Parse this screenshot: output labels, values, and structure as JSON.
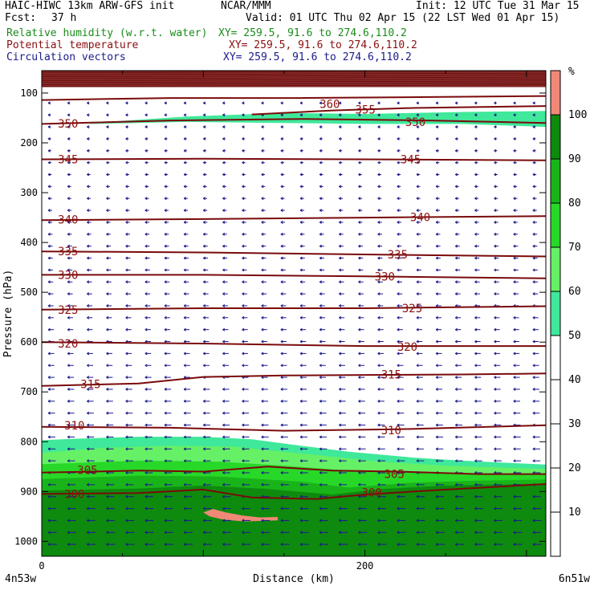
{
  "header": {
    "model": "HAIC-HIWC 13km ARW-GFS init",
    "org": "NCAR/MMM",
    "init": "Init: 12 UTC Tue 31 Mar 15",
    "fcst_label": "Fcst:",
    "fcst_value": "37 h",
    "valid": "Valid: 01 UTC Thu 02 Apr 15 (22 LST Wed 01 Apr 15)",
    "fields": [
      {
        "name": "Relative humidity (w.r.t. water)",
        "xy": "XY= 259.5, 91.6 to 274.6,110.2",
        "color": "#1a8c1a"
      },
      {
        "name": "Potential temperature",
        "xy": "XY= 259.5, 91.6 to 274.6,110.2",
        "color": "#8b1010"
      },
      {
        "name": "Circulation vectors",
        "xy": "XY= 259.5, 91.6 to 274.6,110.2",
        "color": "#1a1a8c"
      }
    ]
  },
  "chart_data": {
    "type": "cross-section",
    "xlabel": "Distance (km)",
    "ylabel": "Pressure (hPa)",
    "xlim": [
      0,
      312
    ],
    "ylim": [
      1030,
      55
    ],
    "xticks": [
      0,
      200
    ],
    "yticks": [
      100,
      200,
      300,
      400,
      500,
      600,
      700,
      800,
      900,
      1000
    ],
    "left_end_label": "4n53w",
    "right_end_label": "6n51w",
    "colorbar": {
      "unit": "%",
      "ticks": [
        10,
        20,
        30,
        40,
        50,
        60,
        70,
        80,
        90,
        100
      ],
      "bands": [
        {
          "from": 0,
          "to": 50,
          "color": "#ffffff"
        },
        {
          "from": 50,
          "to": 60,
          "color": "#3fe89a"
        },
        {
          "from": 60,
          "to": 70,
          "color": "#66f066"
        },
        {
          "from": 70,
          "to": 80,
          "color": "#28d828"
        },
        {
          "from": 80,
          "to": 90,
          "color": "#19b419"
        },
        {
          "from": 90,
          "to": 100,
          "color": "#0e8a0e"
        },
        {
          "from": 100,
          "to": 110,
          "color": "#f08878"
        }
      ]
    },
    "rh_regions": [
      {
        "level": "50-60",
        "color": "#3fe89a",
        "points": [
          [
            30,
            160
          ],
          [
            90,
            147
          ],
          [
            150,
            140
          ],
          [
            200,
            142
          ],
          [
            260,
            138
          ],
          [
            312,
            136
          ],
          [
            312,
            168
          ],
          [
            260,
            162
          ],
          [
            200,
            162
          ],
          [
            150,
            160
          ],
          [
            90,
            158
          ],
          [
            30,
            162
          ]
        ]
      },
      {
        "level": "50-60",
        "color": "#3fe89a",
        "points": [
          [
            0,
            797
          ],
          [
            20,
            794
          ],
          [
            60,
            790
          ],
          [
            100,
            790
          ],
          [
            130,
            795
          ],
          [
            160,
            808
          ],
          [
            190,
            820
          ],
          [
            230,
            832
          ],
          [
            260,
            838
          ],
          [
            312,
            846
          ],
          [
            312,
            1030
          ],
          [
            0,
            1030
          ]
        ]
      },
      {
        "level": "60-70",
        "color": "#66f066",
        "points": [
          [
            0,
            822
          ],
          [
            40,
            812
          ],
          [
            80,
            808
          ],
          [
            120,
            810
          ],
          [
            150,
            820
          ],
          [
            180,
            830
          ],
          [
            210,
            840
          ],
          [
            250,
            848
          ],
          [
            312,
            855
          ],
          [
            312,
            1030
          ],
          [
            0,
            1030
          ]
        ]
      },
      {
        "level": "70-80",
        "color": "#28d828",
        "points": [
          [
            0,
            845
          ],
          [
            60,
            838
          ],
          [
            110,
            840
          ],
          [
            150,
            848
          ],
          [
            190,
            858
          ],
          [
            230,
            862
          ],
          [
            270,
            864
          ],
          [
            312,
            866
          ],
          [
            312,
            1030
          ],
          [
            0,
            1030
          ]
        ]
      },
      {
        "level": "80-90",
        "color": "#19b419",
        "points": [
          [
            0,
            875
          ],
          [
            60,
            868
          ],
          [
            110,
            870
          ],
          [
            160,
            880
          ],
          [
            190,
            892
          ],
          [
            230,
            882
          ],
          [
            270,
            878
          ],
          [
            312,
            876
          ],
          [
            312,
            1030
          ],
          [
            0,
            1030
          ]
        ]
      },
      {
        "level": "90-100",
        "color": "#0e8a0e",
        "points": [
          [
            0,
            898
          ],
          [
            60,
            894
          ],
          [
            100,
            888
          ],
          [
            140,
            895
          ],
          [
            180,
            906
          ],
          [
            210,
            895
          ],
          [
            250,
            888
          ],
          [
            312,
            884
          ],
          [
            312,
            1030
          ],
          [
            0,
            1030
          ]
        ]
      },
      {
        "level": ">100",
        "color": "#f08878",
        "points": [
          [
            100,
            942
          ],
          [
            106,
            935
          ],
          [
            114,
            942
          ],
          [
            124,
            948
          ],
          [
            135,
            952
          ],
          [
            146,
            951
          ],
          [
            146,
            958
          ],
          [
            125,
            960
          ],
          [
            112,
            956
          ],
          [
            104,
            950
          ]
        ]
      }
    ],
    "upper_band": {
      "color": "#6e0d0d",
      "from": 55,
      "to": 88
    },
    "theta_contours": [
      {
        "value": 300,
        "points": [
          [
            0,
            905
          ],
          [
            60,
            903
          ],
          [
            100,
            896
          ],
          [
            130,
            912
          ],
          [
            170,
            915
          ],
          [
            200,
            906
          ],
          [
            240,
            898
          ],
          [
            312,
            885
          ]
        ]
      },
      {
        "value": 305,
        "points": [
          [
            0,
            862
          ],
          [
            60,
            858
          ],
          [
            100,
            860
          ],
          [
            140,
            850
          ],
          [
            180,
            858
          ],
          [
            220,
            860
          ],
          [
            270,
            865
          ],
          [
            312,
            865
          ]
        ]
      },
      {
        "value": 310,
        "points": [
          [
            0,
            770
          ],
          [
            80,
            772
          ],
          [
            150,
            778
          ],
          [
            220,
            775
          ],
          [
            312,
            767
          ]
        ]
      },
      {
        "value": 315,
        "points": [
          [
            0,
            688
          ],
          [
            60,
            683
          ],
          [
            100,
            670
          ],
          [
            150,
            667
          ],
          [
            200,
            666
          ],
          [
            260,
            665
          ],
          [
            312,
            663
          ]
        ]
      },
      {
        "value": 320,
        "points": [
          [
            0,
            600
          ],
          [
            100,
            603
          ],
          [
            200,
            608
          ],
          [
            312,
            608
          ]
        ]
      },
      {
        "value": 325,
        "points": [
          [
            0,
            535
          ],
          [
            100,
            532
          ],
          [
            200,
            532
          ],
          [
            312,
            528
          ]
        ]
      },
      {
        "value": 330,
        "points": [
          [
            0,
            465
          ],
          [
            100,
            465
          ],
          [
            200,
            468
          ],
          [
            312,
            472
          ]
        ]
      },
      {
        "value": 335,
        "points": [
          [
            0,
            418
          ],
          [
            100,
            420
          ],
          [
            200,
            424
          ],
          [
            312,
            428
          ]
        ]
      },
      {
        "value": 340,
        "points": [
          [
            0,
            355
          ],
          [
            100,
            353
          ],
          [
            200,
            350
          ],
          [
            312,
            347
          ]
        ]
      },
      {
        "value": 345,
        "points": [
          [
            0,
            233
          ],
          [
            100,
            232
          ],
          [
            200,
            233
          ],
          [
            312,
            235
          ]
        ]
      },
      {
        "value": 350,
        "points": [
          [
            0,
            162
          ],
          [
            80,
            155
          ],
          [
            160,
            152
          ],
          [
            240,
            155
          ],
          [
            312,
            160
          ]
        ]
      },
      {
        "value": 355,
        "points": [
          [
            130,
            143
          ],
          [
            180,
            135
          ],
          [
            230,
            130
          ],
          [
            312,
            126
          ]
        ]
      },
      {
        "value": 360,
        "points": [
          [
            0,
            114
          ],
          [
            80,
            110
          ],
          [
            160,
            110
          ],
          [
            240,
            108
          ],
          [
            312,
            106
          ]
        ]
      }
    ],
    "theta_labels": [
      {
        "text": "300",
        "x": 14,
        "y": 905
      },
      {
        "text": "300",
        "x": 198,
        "y": 902
      },
      {
        "text": "305",
        "x": 22,
        "y": 857
      },
      {
        "text": "305",
        "x": 212,
        "y": 865
      },
      {
        "text": "310",
        "x": 14,
        "y": 767
      },
      {
        "text": "310",
        "x": 210,
        "y": 777
      },
      {
        "text": "315",
        "x": 24,
        "y": 684
      },
      {
        "text": "315",
        "x": 210,
        "y": 665
      },
      {
        "text": "320",
        "x": 10,
        "y": 603
      },
      {
        "text": "320",
        "x": 220,
        "y": 609
      },
      {
        "text": "325",
        "x": 10,
        "y": 535
      },
      {
        "text": "325",
        "x": 223,
        "y": 532
      },
      {
        "text": "330",
        "x": 10,
        "y": 465
      },
      {
        "text": "330",
        "x": 206,
        "y": 468
      },
      {
        "text": "335",
        "x": 10,
        "y": 418
      },
      {
        "text": "335",
        "x": 214,
        "y": 424
      },
      {
        "text": "340",
        "x": 10,
        "y": 354
      },
      {
        "text": "340",
        "x": 228,
        "y": 349
      },
      {
        "text": "345",
        "x": 10,
        "y": 233
      },
      {
        "text": "345",
        "x": 222,
        "y": 233
      },
      {
        "text": "350",
        "x": 10,
        "y": 161
      },
      {
        "text": "350",
        "x": 225,
        "y": 158
      },
      {
        "text": "355",
        "x": 194,
        "y": 133
      },
      {
        "text": "360",
        "x": 172,
        "y": 122
      }
    ],
    "vectors": {
      "direction": "westward",
      "color": "#1a1a8c",
      "rows": 38,
      "cols": 26
    }
  }
}
